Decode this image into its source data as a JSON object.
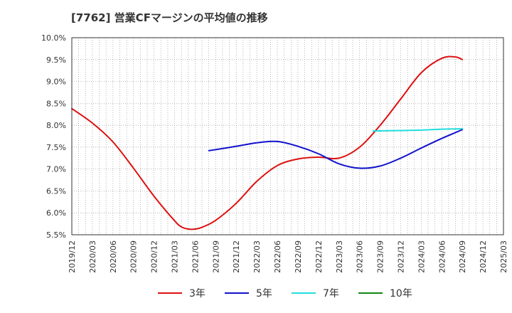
{
  "title": "[7762]  営業CFマージンの平均値の推移",
  "chart_data": {
    "type": "line",
    "title": "[7762]  営業CFマージンの平均値の推移",
    "x_ticks": [
      "2019/12",
      "2020/03",
      "2020/06",
      "2020/09",
      "2020/12",
      "2021/03",
      "2021/06",
      "2021/09",
      "2021/12",
      "2022/03",
      "2022/06",
      "2022/09",
      "2022/12",
      "2023/03",
      "2023/06",
      "2023/09",
      "2023/12",
      "2024/03",
      "2024/06",
      "2024/09",
      "2024/12",
      "2025/03"
    ],
    "y_ticks": [
      "5.5%",
      "6.0%",
      "6.5%",
      "7.0%",
      "7.5%",
      "8.0%",
      "8.5%",
      "9.0%",
      "9.5%",
      "10.0%"
    ],
    "ylim": [
      5.5,
      10.0
    ],
    "grid": true,
    "legend_position": "bottom",
    "series": [
      {
        "name": "3年",
        "color": "#dd1111",
        "points": [
          [
            "2019/12",
            8.38
          ],
          [
            "2020/03",
            8.05
          ],
          [
            "2020/06",
            7.62
          ],
          [
            "2020/09",
            7.02
          ],
          [
            "2020/12",
            6.38
          ],
          [
            "2021/03",
            5.82
          ],
          [
            "2021/04",
            5.68
          ],
          [
            "2021/05",
            5.63
          ],
          [
            "2021/06",
            5.63
          ],
          [
            "2021/07",
            5.67
          ],
          [
            "2021/09",
            5.83
          ],
          [
            "2021/12",
            6.22
          ],
          [
            "2022/03",
            6.72
          ],
          [
            "2022/06",
            7.08
          ],
          [
            "2022/09",
            7.23
          ],
          [
            "2022/12",
            7.27
          ],
          [
            "2023/03",
            7.25
          ],
          [
            "2023/06",
            7.5
          ],
          [
            "2023/09",
            8.0
          ],
          [
            "2023/12",
            8.6
          ],
          [
            "2024/03",
            9.2
          ],
          [
            "2024/06",
            9.53
          ],
          [
            "2024/08",
            9.56
          ],
          [
            "2024/09",
            9.5
          ]
        ]
      },
      {
        "name": "5年",
        "color": "#1111cc",
        "points": [
          [
            "2021/08",
            7.42
          ],
          [
            "2021/12",
            7.52
          ],
          [
            "2022/03",
            7.6
          ],
          [
            "2022/06",
            7.63
          ],
          [
            "2022/09",
            7.52
          ],
          [
            "2022/12",
            7.35
          ],
          [
            "2023/03",
            7.12
          ],
          [
            "2023/06",
            7.02
          ],
          [
            "2023/09",
            7.07
          ],
          [
            "2023/12",
            7.25
          ],
          [
            "2024/03",
            7.48
          ],
          [
            "2024/06",
            7.7
          ],
          [
            "2024/09",
            7.9
          ]
        ]
      },
      {
        "name": "7年",
        "color": "#22dddd",
        "points": [
          [
            "2023/08",
            7.87
          ],
          [
            "2023/12",
            7.88
          ],
          [
            "2024/03",
            7.89
          ],
          [
            "2024/06",
            7.91
          ],
          [
            "2024/09",
            7.92
          ]
        ]
      },
      {
        "name": "10年",
        "color": "#118811",
        "points": []
      }
    ]
  }
}
